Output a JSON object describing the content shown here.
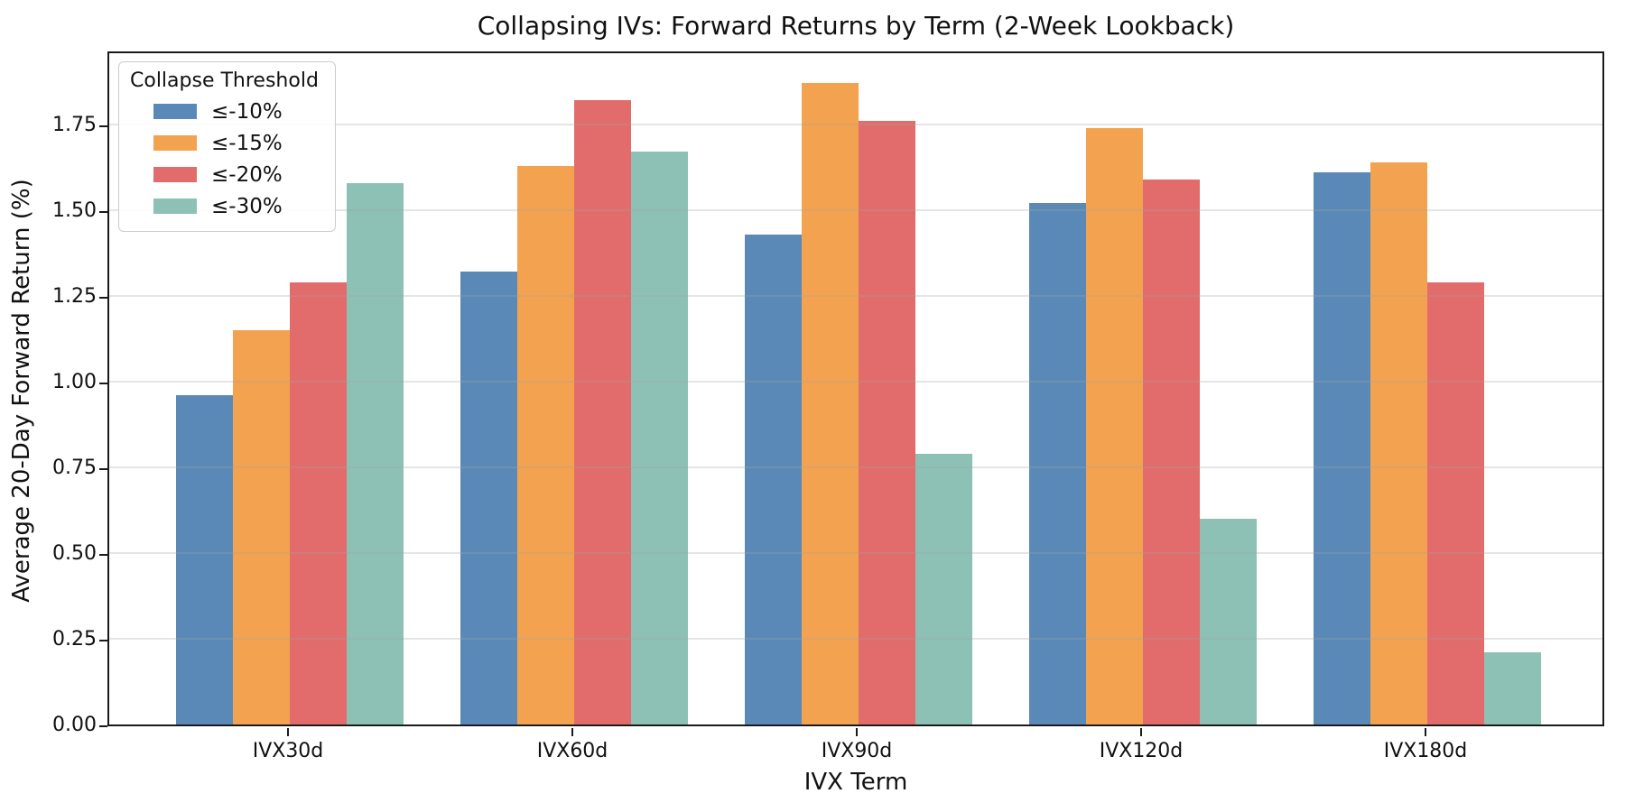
{
  "chart_data": {
    "type": "bar",
    "title": "Collapsing IVs: Forward Returns by Term (2-Week Lookback)",
    "xlabel": "IVX Term",
    "ylabel": "Average 20-Day Forward Return (%)",
    "categories": [
      "IVX30d",
      "IVX60d",
      "IVX90d",
      "IVX120d",
      "IVX180d"
    ],
    "series": [
      {
        "name": "≤-10%",
        "color": "#5B89B7",
        "values": [
          0.96,
          1.32,
          1.43,
          1.52,
          1.61
        ]
      },
      {
        "name": "≤-15%",
        "color": "#F3A250",
        "values": [
          1.15,
          1.63,
          1.87,
          1.74,
          1.64
        ]
      },
      {
        "name": "≤-20%",
        "color": "#E26C6C",
        "values": [
          1.29,
          1.82,
          1.76,
          1.59,
          1.29
        ]
      },
      {
        "name": "≤-30%",
        "color": "#8DC1B5",
        "values": [
          1.58,
          1.67,
          0.79,
          0.6,
          0.21
        ]
      }
    ],
    "legend_title": "Collapse Threshold",
    "legend_position": "upper-left",
    "ylim": [
      0,
      1.97
    ],
    "ytick_values": [
      0,
      0.25,
      0.5,
      0.75,
      1.0,
      1.25,
      1.5,
      1.75
    ],
    "ytick_labels": [
      "0.00",
      "0.25",
      "0.50",
      "0.75",
      "1.00",
      "1.25",
      "1.50",
      "1.75"
    ],
    "grid": "horizontal",
    "background_color": "#ffffff",
    "spine_color": "#1a1a1a"
  }
}
